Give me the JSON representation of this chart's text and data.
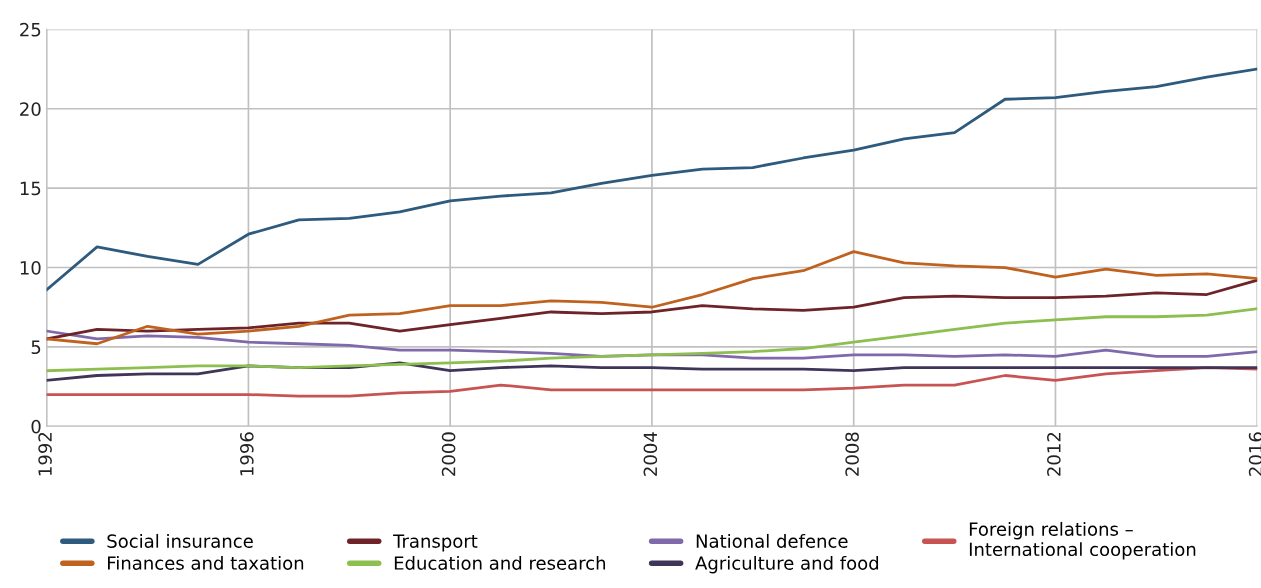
{
  "chart_data": {
    "type": "line",
    "x": [
      1992,
      1993,
      1994,
      1995,
      1996,
      1997,
      1998,
      1999,
      2000,
      2001,
      2002,
      2003,
      2004,
      2005,
      2006,
      2007,
      2008,
      2009,
      2010,
      2011,
      2012,
      2013,
      2014,
      2015,
      2016
    ],
    "xlim": [
      1992,
      2016
    ],
    "xticks": [
      1992,
      1996,
      2000,
      2004,
      2008,
      2012,
      2016
    ],
    "ylim": [
      0,
      25
    ],
    "yticks": [
      0,
      5,
      10,
      15,
      20,
      25
    ],
    "grid": true,
    "legend": "bottom",
    "marker": "none",
    "line_style": "solid",
    "series": [
      {
        "name": "Social insurance",
        "color": "#2e5a7e",
        "values": [
          8.6,
          11.3,
          10.7,
          10.2,
          12.1,
          13.0,
          13.1,
          13.5,
          14.2,
          14.5,
          14.7,
          15.3,
          15.8,
          16.2,
          16.3,
          16.9,
          17.4,
          18.1,
          18.5,
          20.6,
          20.7,
          21.1,
          21.4,
          22.0,
          22.5
        ]
      },
      {
        "name": "Finances and taxation",
        "color": "#c0621f",
        "values": [
          5.5,
          5.2,
          6.3,
          5.8,
          6.0,
          6.3,
          7.0,
          7.1,
          7.6,
          7.6,
          7.9,
          7.8,
          7.5,
          8.3,
          9.3,
          9.8,
          11.0,
          10.3,
          10.1,
          10.0,
          9.4,
          9.9,
          9.5,
          9.6,
          9.3
        ]
      },
      {
        "name": "Transport",
        "color": "#6e2329",
        "values": [
          5.5,
          6.1,
          6.0,
          6.1,
          6.2,
          6.5,
          6.5,
          6.0,
          6.4,
          6.8,
          7.2,
          7.1,
          7.2,
          7.6,
          7.4,
          7.3,
          7.5,
          8.1,
          8.2,
          8.1,
          8.1,
          8.2,
          8.4,
          8.3,
          9.2
        ]
      },
      {
        "name": "Education and research",
        "color": "#8cbf4f",
        "values": [
          3.5,
          3.6,
          3.7,
          3.8,
          3.8,
          3.7,
          3.8,
          3.9,
          4.0,
          4.1,
          4.3,
          4.4,
          4.5,
          4.6,
          4.7,
          4.9,
          5.3,
          5.7,
          6.1,
          6.5,
          6.7,
          6.9,
          6.9,
          7.0,
          7.4
        ]
      },
      {
        "name": "National defence",
        "color": "#8069aa",
        "values": [
          6.0,
          5.5,
          5.7,
          5.6,
          5.3,
          5.2,
          5.1,
          4.8,
          4.8,
          4.7,
          4.6,
          4.4,
          4.5,
          4.5,
          4.3,
          4.3,
          4.5,
          4.5,
          4.4,
          4.5,
          4.4,
          4.8,
          4.4,
          4.4,
          4.7
        ]
      },
      {
        "name": "Agriculture and food",
        "color": "#3f3558",
        "values": [
          2.9,
          3.2,
          3.3,
          3.3,
          3.8,
          3.7,
          3.7,
          4.0,
          3.5,
          3.7,
          3.8,
          3.7,
          3.7,
          3.6,
          3.6,
          3.6,
          3.5,
          3.7,
          3.7,
          3.7,
          3.7,
          3.7,
          3.7,
          3.7,
          3.7
        ]
      },
      {
        "name": "Foreign relations –\nInternational cooperation",
        "color": "#c85353",
        "values": [
          2.0,
          2.0,
          2.0,
          2.0,
          2.0,
          1.9,
          1.9,
          2.1,
          2.2,
          2.6,
          2.3,
          2.3,
          2.3,
          2.3,
          2.3,
          2.3,
          2.4,
          2.6,
          2.6,
          3.2,
          2.9,
          3.3,
          3.5,
          3.7,
          3.6
        ]
      }
    ]
  }
}
